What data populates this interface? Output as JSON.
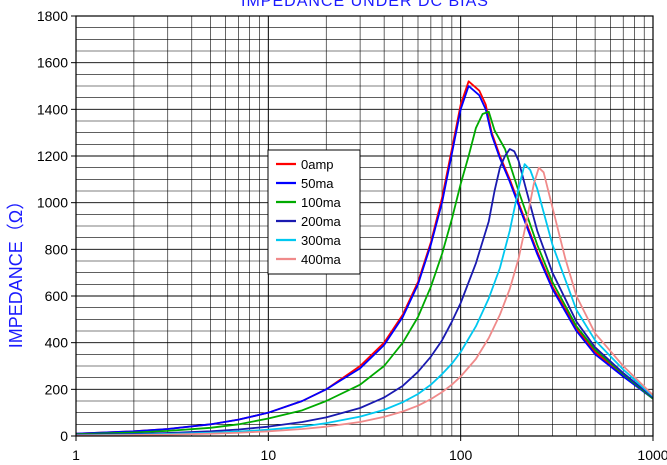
{
  "chart_data": {
    "type": "line",
    "title": "IMPEDANCE UNDER DC BIAS",
    "xlabel": "",
    "ylabel": "IMPEDANCE（Ω）",
    "x_scale": "log",
    "xlim": [
      1,
      1000
    ],
    "ylim": [
      0,
      1800
    ],
    "x_ticks": [
      1,
      10,
      100,
      1000
    ],
    "x_tick_labels": [
      "1",
      "10",
      "100",
      "1000"
    ],
    "y_ticks": [
      0,
      200,
      400,
      600,
      800,
      1000,
      1200,
      1400,
      1600,
      1800
    ],
    "y_tick_labels": [
      "0",
      "200",
      "400",
      "600",
      "800",
      "1000",
      "1200",
      "1400",
      "1600",
      "1800"
    ],
    "grid": true,
    "legend_position": "center-left",
    "series": [
      {
        "name": "0amp",
        "color": "#ff0000",
        "points": [
          [
            1,
            10
          ],
          [
            2,
            20
          ],
          [
            3,
            30
          ],
          [
            5,
            50
          ],
          [
            7,
            70
          ],
          [
            10,
            100
          ],
          [
            15,
            150
          ],
          [
            20,
            200
          ],
          [
            30,
            300
          ],
          [
            40,
            400
          ],
          [
            50,
            520
          ],
          [
            60,
            660
          ],
          [
            70,
            830
          ],
          [
            80,
            1020
          ],
          [
            90,
            1230
          ],
          [
            100,
            1420
          ],
          [
            110,
            1520
          ],
          [
            125,
            1480
          ],
          [
            135,
            1420
          ],
          [
            145,
            1300
          ],
          [
            160,
            1200
          ],
          [
            180,
            1100
          ],
          [
            200,
            1000
          ],
          [
            250,
            790
          ],
          [
            300,
            640
          ],
          [
            400,
            460
          ],
          [
            500,
            360
          ],
          [
            700,
            260
          ],
          [
            1000,
            160
          ]
        ]
      },
      {
        "name": "50ma",
        "color": "#0000ff",
        "points": [
          [
            1,
            10
          ],
          [
            2,
            20
          ],
          [
            3,
            30
          ],
          [
            5,
            50
          ],
          [
            7,
            70
          ],
          [
            10,
            100
          ],
          [
            15,
            150
          ],
          [
            20,
            200
          ],
          [
            30,
            290
          ],
          [
            40,
            390
          ],
          [
            50,
            510
          ],
          [
            60,
            650
          ],
          [
            70,
            820
          ],
          [
            80,
            1000
          ],
          [
            90,
            1210
          ],
          [
            100,
            1400
          ],
          [
            110,
            1500
          ],
          [
            125,
            1460
          ],
          [
            135,
            1400
          ],
          [
            145,
            1290
          ],
          [
            160,
            1190
          ],
          [
            180,
            1090
          ],
          [
            200,
            990
          ],
          [
            250,
            780
          ],
          [
            300,
            630
          ],
          [
            400,
            450
          ],
          [
            500,
            350
          ],
          [
            700,
            255
          ],
          [
            1000,
            160
          ]
        ]
      },
      {
        "name": "100ma",
        "color": "#00aa00",
        "points": [
          [
            1,
            8
          ],
          [
            2,
            15
          ],
          [
            3,
            22
          ],
          [
            5,
            35
          ],
          [
            7,
            50
          ],
          [
            10,
            75
          ],
          [
            15,
            110
          ],
          [
            20,
            150
          ],
          [
            30,
            220
          ],
          [
            40,
            300
          ],
          [
            50,
            400
          ],
          [
            60,
            510
          ],
          [
            70,
            640
          ],
          [
            80,
            780
          ],
          [
            90,
            930
          ],
          [
            100,
            1080
          ],
          [
            110,
            1200
          ],
          [
            120,
            1320
          ],
          [
            130,
            1380
          ],
          [
            140,
            1390
          ],
          [
            150,
            1310
          ],
          [
            170,
            1230
          ],
          [
            200,
            1050
          ],
          [
            250,
            820
          ],
          [
            300,
            660
          ],
          [
            400,
            470
          ],
          [
            500,
            370
          ],
          [
            700,
            265
          ],
          [
            1000,
            160
          ]
        ]
      },
      {
        "name": "200ma",
        "color": "#1a1ab0",
        "points": [
          [
            1,
            5
          ],
          [
            2,
            9
          ],
          [
            3,
            13
          ],
          [
            5,
            20
          ],
          [
            7,
            28
          ],
          [
            10,
            40
          ],
          [
            15,
            60
          ],
          [
            20,
            80
          ],
          [
            30,
            120
          ],
          [
            40,
            165
          ],
          [
            50,
            215
          ],
          [
            60,
            275
          ],
          [
            70,
            340
          ],
          [
            80,
            410
          ],
          [
            90,
            490
          ],
          [
            100,
            570
          ],
          [
            120,
            740
          ],
          [
            140,
            920
          ],
          [
            150,
            1050
          ],
          [
            160,
            1150
          ],
          [
            170,
            1200
          ],
          [
            180,
            1230
          ],
          [
            190,
            1220
          ],
          [
            200,
            1180
          ],
          [
            220,
            1050
          ],
          [
            250,
            880
          ],
          [
            300,
            700
          ],
          [
            400,
            490
          ],
          [
            500,
            380
          ],
          [
            700,
            270
          ],
          [
            1000,
            165
          ]
        ]
      },
      {
        "name": "300ma",
        "color": "#00c8f0",
        "points": [
          [
            1,
            3
          ],
          [
            2,
            6
          ],
          [
            3,
            9
          ],
          [
            5,
            14
          ],
          [
            7,
            19
          ],
          [
            10,
            27
          ],
          [
            15,
            40
          ],
          [
            20,
            55
          ],
          [
            30,
            83
          ],
          [
            40,
            112
          ],
          [
            50,
            145
          ],
          [
            60,
            180
          ],
          [
            70,
            220
          ],
          [
            80,
            265
          ],
          [
            90,
            310
          ],
          [
            100,
            360
          ],
          [
            120,
            470
          ],
          [
            140,
            590
          ],
          [
            160,
            720
          ],
          [
            180,
            880
          ],
          [
            200,
            1060
          ],
          [
            215,
            1165
          ],
          [
            230,
            1140
          ],
          [
            250,
            1060
          ],
          [
            300,
            820
          ],
          [
            400,
            540
          ],
          [
            500,
            410
          ],
          [
            700,
            285
          ],
          [
            1000,
            170
          ]
        ]
      },
      {
        "name": "400ma",
        "color": "#f08a8a",
        "points": [
          [
            1,
            2
          ],
          [
            2,
            4
          ],
          [
            3,
            6
          ],
          [
            5,
            10
          ],
          [
            7,
            14
          ],
          [
            10,
            20
          ],
          [
            15,
            30
          ],
          [
            20,
            40
          ],
          [
            30,
            60
          ],
          [
            40,
            82
          ],
          [
            50,
            105
          ],
          [
            60,
            130
          ],
          [
            70,
            158
          ],
          [
            80,
            188
          ],
          [
            90,
            220
          ],
          [
            100,
            255
          ],
          [
            120,
            330
          ],
          [
            140,
            420
          ],
          [
            160,
            520
          ],
          [
            180,
            630
          ],
          [
            200,
            760
          ],
          [
            220,
            920
          ],
          [
            240,
            1080
          ],
          [
            255,
            1150
          ],
          [
            270,
            1130
          ],
          [
            300,
            980
          ],
          [
            350,
            760
          ],
          [
            400,
            600
          ],
          [
            500,
            440
          ],
          [
            700,
            300
          ],
          [
            1000,
            175
          ]
        ]
      }
    ]
  }
}
